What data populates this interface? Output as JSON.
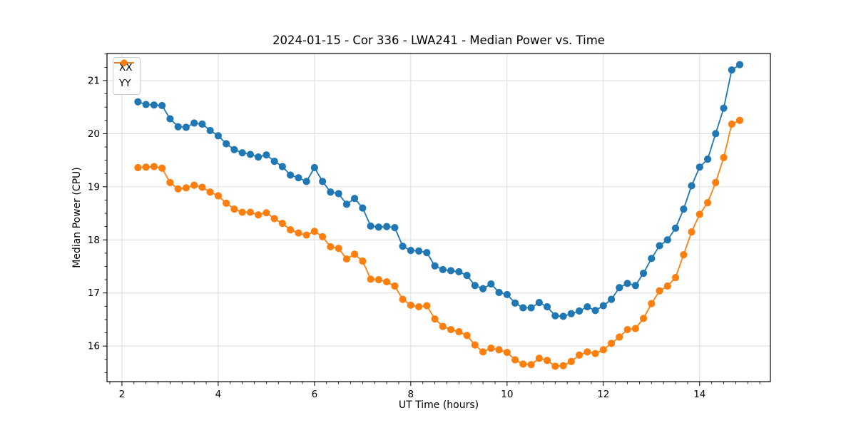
{
  "figure": {
    "title": "2024-01-15 - Cor 336 - LWA241 - Median Power vs. Time",
    "xlabel": "UT Time (hours)",
    "ylabel": "Median Power (CPU)"
  },
  "legend": {
    "entries": [
      {
        "label": "XX",
        "color": "#1f77b4"
      },
      {
        "label": "YY",
        "color": "#ff7f0e"
      }
    ]
  },
  "colors": {
    "series_xx": "#1f77b4",
    "series_yy": "#ff7f0e",
    "grid": "#d9d9d9",
    "spine": "#000000",
    "background": "#ffffff"
  },
  "chart_data": {
    "type": "line",
    "title": "2024-01-15 - Cor 336 - LWA241 - Median Power vs. Time",
    "xlabel": "UT Time (hours)",
    "ylabel": "Median Power (CPU)",
    "xlim": [
      1.69,
      15.47
    ],
    "ylim": [
      15.33,
      21.51
    ],
    "x_ticks": [
      2,
      4,
      6,
      8,
      10,
      12,
      14
    ],
    "y_ticks": [
      16,
      17,
      18,
      19,
      20,
      21
    ],
    "minor_tick_step": 0.25,
    "grid": "major",
    "legend_position": "upper left",
    "marker": "circle",
    "x": [
      2.333,
      2.5,
      2.667,
      2.833,
      3.0,
      3.167,
      3.333,
      3.5,
      3.667,
      3.833,
      4.0,
      4.167,
      4.333,
      4.5,
      4.667,
      4.833,
      5.0,
      5.167,
      5.333,
      5.5,
      5.667,
      5.833,
      6.0,
      6.167,
      6.333,
      6.5,
      6.667,
      6.833,
      7.0,
      7.167,
      7.333,
      7.5,
      7.667,
      7.833,
      8.0,
      8.167,
      8.333,
      8.5,
      8.667,
      8.833,
      9.0,
      9.167,
      9.333,
      9.5,
      9.667,
      9.833,
      10.0,
      10.167,
      10.333,
      10.5,
      10.667,
      10.833,
      11.0,
      11.167,
      11.333,
      11.5,
      11.667,
      11.833,
      12.0,
      12.167,
      12.333,
      12.5,
      12.667,
      12.833,
      13.0,
      13.167,
      13.333,
      13.5,
      13.667,
      13.833,
      14.0,
      14.167,
      14.333,
      14.5,
      14.667,
      14.833
    ],
    "series": [
      {
        "name": "XX",
        "color": "#1f77b4",
        "values": [
          20.6,
          20.55,
          20.54,
          20.53,
          20.28,
          20.13,
          20.12,
          20.2,
          20.18,
          20.06,
          19.96,
          19.81,
          19.7,
          19.64,
          19.61,
          19.56,
          19.6,
          19.48,
          19.38,
          19.22,
          19.17,
          19.1,
          19.36,
          19.1,
          18.9,
          18.87,
          18.67,
          18.78,
          18.6,
          18.26,
          18.24,
          18.25,
          18.23,
          17.88,
          17.8,
          17.79,
          17.76,
          17.51,
          17.44,
          17.42,
          17.4,
          17.33,
          17.14,
          17.08,
          17.17,
          17.01,
          16.97,
          16.81,
          16.72,
          16.72,
          16.82,
          16.74,
          16.57,
          16.56,
          16.61,
          16.66,
          16.74,
          16.67,
          16.76,
          16.88,
          17.1,
          17.18,
          17.14,
          17.37,
          17.65,
          17.89,
          18.0,
          18.22,
          18.58,
          19.02,
          19.37,
          19.52,
          20.0,
          20.48,
          21.2,
          21.3
        ]
      },
      {
        "name": "YY",
        "color": "#ff7f0e",
        "values": [
          19.36,
          19.37,
          19.38,
          19.35,
          19.08,
          18.96,
          18.98,
          19.03,
          18.99,
          18.9,
          18.83,
          18.69,
          18.58,
          18.52,
          18.52,
          18.47,
          18.51,
          18.4,
          18.31,
          18.19,
          18.13,
          18.09,
          18.16,
          18.06,
          17.87,
          17.84,
          17.64,
          17.73,
          17.6,
          17.26,
          17.25,
          17.21,
          17.13,
          16.88,
          16.77,
          16.74,
          16.76,
          16.51,
          16.37,
          16.31,
          16.27,
          16.2,
          16.02,
          15.89,
          15.96,
          15.93,
          15.88,
          15.74,
          15.66,
          15.65,
          15.77,
          15.73,
          15.62,
          15.63,
          15.71,
          15.83,
          15.89,
          15.86,
          15.93,
          16.05,
          16.17,
          16.31,
          16.33,
          16.52,
          16.8,
          17.04,
          17.13,
          17.29,
          17.72,
          18.15,
          18.48,
          18.7,
          19.08,
          19.55,
          20.18,
          20.25
        ]
      }
    ]
  }
}
